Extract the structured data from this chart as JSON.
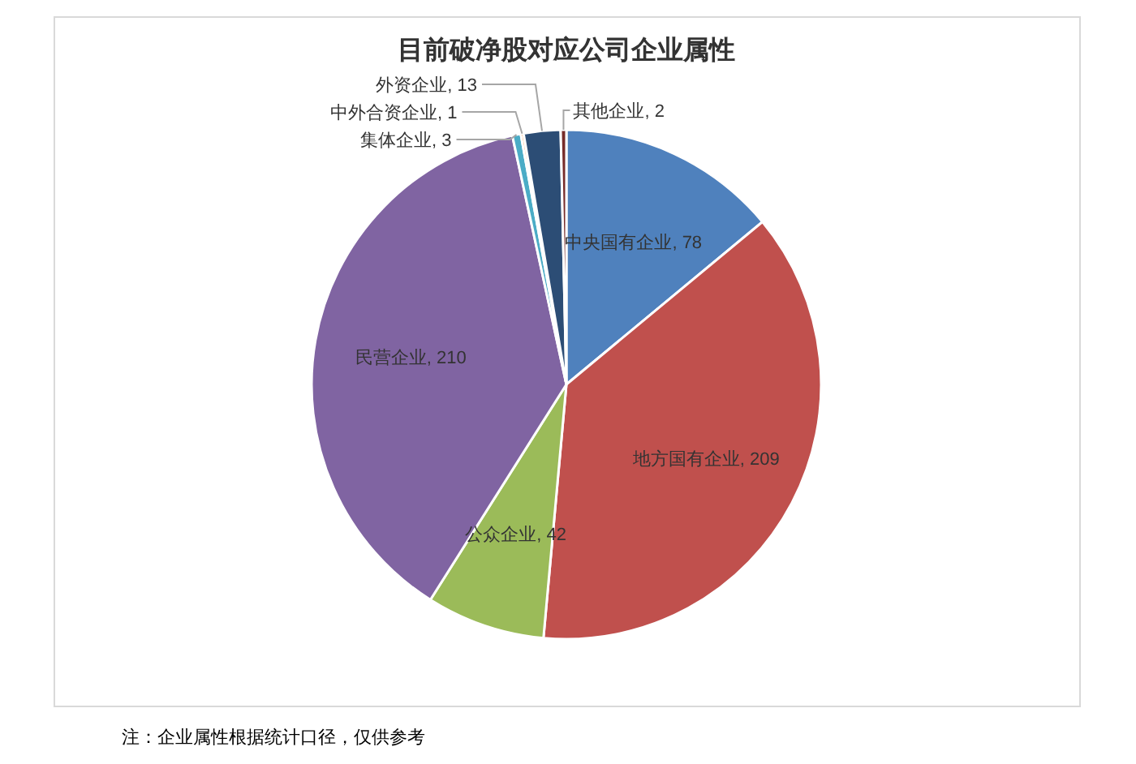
{
  "chart_data": {
    "type": "pie",
    "title": "目前破净股对应公司企业属性",
    "categories": [
      "中央国有企业",
      "地方国有企业",
      "公众企业",
      "民营企业",
      "集体企业",
      "中外合资企业",
      "外资企业",
      "其他企业"
    ],
    "values": [
      78,
      209,
      42,
      210,
      3,
      1,
      13,
      2
    ],
    "colors": [
      "#4f81bd",
      "#c0504d",
      "#9bbb59",
      "#8064a2",
      "#4bacc6",
      "#f79646",
      "#2c4d75",
      "#772c2a"
    ],
    "value_labels": [
      ", 78",
      ", 209",
      ", 42",
      ", 210",
      ", 3",
      ", 1",
      ", 13",
      ", 2"
    ],
    "annotations": [
      "注：企业属性根据统计口径，仅供参考"
    ]
  }
}
